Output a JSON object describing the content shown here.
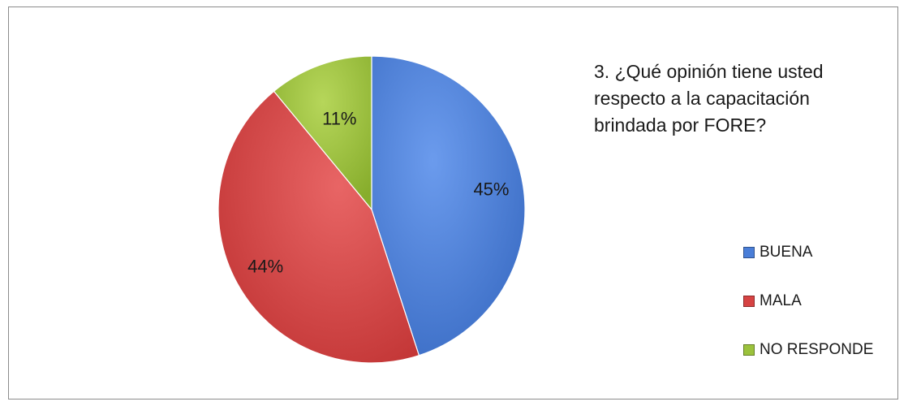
{
  "chart_data": {
    "type": "pie",
    "title": "3. ¿Qué opinión tiene usted respecto a la capacitación brindada por FORE?",
    "categories": [
      "BUENA",
      "MALA",
      "NO RESPONDE"
    ],
    "values": [
      45,
      44,
      11
    ],
    "labels": [
      "45%",
      "44%",
      "11%"
    ],
    "colors": [
      "#4a7ed8",
      "#d64343",
      "#9bc23c"
    ],
    "legend_position": "right"
  }
}
